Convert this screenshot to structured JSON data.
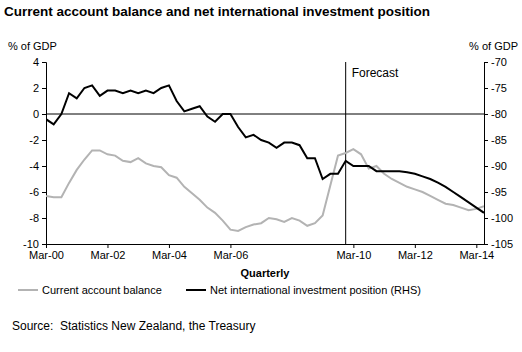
{
  "chart_data": {
    "type": "line",
    "title": "Current account balance and net international investment position",
    "y_label": "% of GDP",
    "y2_label": "% of GDP",
    "x_label": "Quarterly",
    "source": "Source:  Statistics New Zealand, the Treasury",
    "categories": [
      "Mar-00",
      null,
      null,
      null,
      null,
      null,
      null,
      null,
      "Mar-02",
      null,
      null,
      null,
      null,
      null,
      null,
      null,
      "Mar-04",
      null,
      null,
      null,
      null,
      null,
      null,
      null,
      "Mar-06",
      null,
      null,
      null,
      null,
      null,
      null,
      null,
      null,
      null,
      null,
      null,
      null,
      null,
      null,
      null,
      "Mar-10",
      null,
      null,
      null,
      null,
      null,
      null,
      null,
      "Mar-12",
      null,
      null,
      null,
      null,
      null,
      null,
      null,
      "Mar-14",
      null
    ],
    "ylim": [
      -10,
      4
    ],
    "yticks": [
      -10,
      -8,
      -6,
      -4,
      -2,
      0,
      2,
      4
    ],
    "y2lim": [
      -105,
      -70
    ],
    "y2ticks": [
      -105,
      -100,
      -95,
      -90,
      -85,
      -80,
      -75,
      -70
    ],
    "legend": "bottom",
    "grid": false,
    "annotations": [
      {
        "text": "Forecast",
        "x": 39
      }
    ],
    "series": [
      {
        "name": "Current account balance",
        "color": "#b3b3b3",
        "values": [
          -6.3,
          -6.4,
          -6.4,
          -5.3,
          -4.3,
          -3.5,
          -2.8,
          -2.8,
          -3.1,
          -3.2,
          -3.6,
          -3.7,
          -3.4,
          -3.8,
          -4.0,
          -4.1,
          -4.7,
          -4.9,
          -5.6,
          -6.1,
          -6.6,
          -7.2,
          -7.6,
          -8.2,
          -8.9,
          -9.0,
          -8.7,
          -8.5,
          -8.4,
          -8.0,
          -8.1,
          -8.3,
          -8.0,
          -8.2,
          -8.6,
          -8.4,
          -7.8,
          -5.5,
          -3.2,
          -3.0,
          -2.7,
          -3.1,
          -4.2,
          -4.0,
          -4.6,
          -5.0,
          -5.3,
          -5.6,
          -5.8,
          -6.0,
          -6.3,
          -6.6,
          -6.9,
          -7.0,
          -7.2,
          -7.4,
          -7.3,
          -7.1
        ]
      },
      {
        "name": "Net international investment position (RHS)",
        "color": "#000000",
        "axis": "y2",
        "values": [
          -81,
          -82,
          -80,
          -76,
          -77,
          -75,
          -74.5,
          -76.5,
          -75.5,
          -75.5,
          -76,
          -75.5,
          -76,
          -75.5,
          -76,
          -75,
          -74.5,
          -77.5,
          -79.5,
          -79,
          -78.5,
          -80.5,
          -81.5,
          -80,
          -80,
          -82.5,
          -84.5,
          -84,
          -85,
          -85.5,
          -86.5,
          -85.5,
          -85.5,
          -86,
          -88.5,
          -88.5,
          -92.5,
          -91.5,
          -91.5,
          -89,
          -90,
          -90,
          -90,
          -91,
          -91,
          -91,
          -91,
          -91.2,
          -91.5,
          -92,
          -92.5,
          -93.2,
          -94,
          -95,
          -96,
          -97,
          -98,
          -99
        ]
      }
    ]
  }
}
